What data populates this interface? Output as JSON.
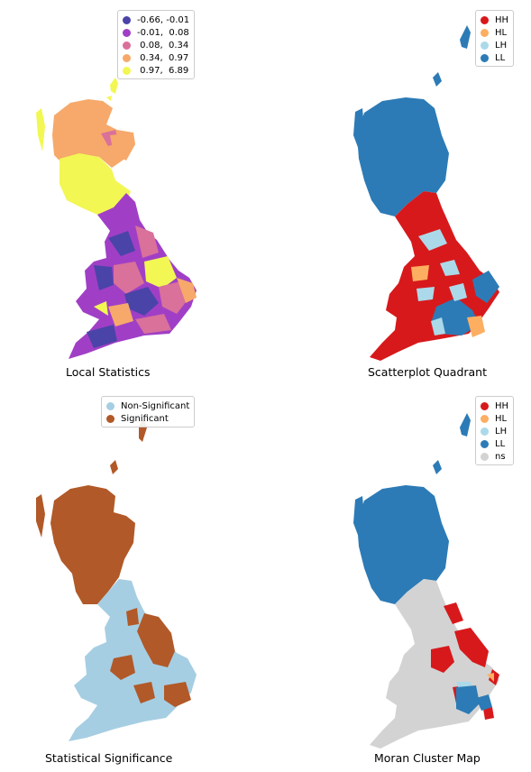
{
  "panels": [
    {
      "id": "local",
      "caption": "Local Statistics",
      "legend": [
        {
          "label": "-0.66, -0.01",
          "color": "#4a44a8"
        },
        {
          "label": "-0.01,  0.08",
          "color": "#a03fc6"
        },
        {
          "label": " 0.08,  0.34",
          "color": "#d9719a"
        },
        {
          "label": " 0.34,  0.97",
          "color": "#f6a96a"
        },
        {
          "label": " 0.97,  6.89",
          "color": "#f2f753"
        }
      ]
    },
    {
      "id": "quadrant",
      "caption": "Scatterplot Quadrant",
      "legend": [
        {
          "label": "HH",
          "color": "#d7191c"
        },
        {
          "label": "HL",
          "color": "#fdae61"
        },
        {
          "label": "LH",
          "color": "#abd9e9"
        },
        {
          "label": "LL",
          "color": "#2c7bb6"
        }
      ]
    },
    {
      "id": "significance",
      "caption": "Statistical Significance",
      "legend": [
        {
          "label": "Non-Significant",
          "color": "#a6cee3"
        },
        {
          "label": "Significant",
          "color": "#b15928"
        }
      ]
    },
    {
      "id": "cluster",
      "caption": "Moran Cluster Map",
      "legend": [
        {
          "label": "HH",
          "color": "#d7191c"
        },
        {
          "label": "HL",
          "color": "#fdae61"
        },
        {
          "label": "LH",
          "color": "#abd9e9"
        },
        {
          "label": "LL",
          "color": "#2c7bb6"
        },
        {
          "label": "ns",
          "color": "#d3d3d3"
        }
      ]
    }
  ]
}
